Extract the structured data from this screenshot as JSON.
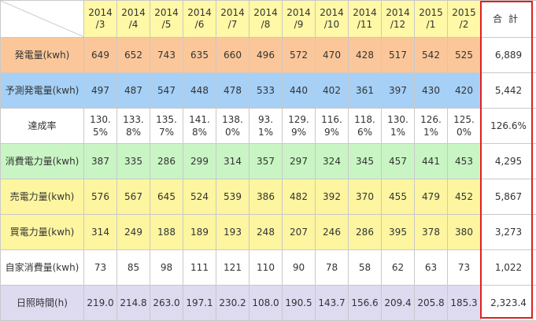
{
  "header": {
    "months": [
      "2014\n/3",
      "2014\n/4",
      "2014\n/5",
      "2014\n/6",
      "2014\n/7",
      "2014\n/8",
      "2014\n/9",
      "2014\n/10",
      "2014\n/11",
      "2014\n/12",
      "2015\n/1",
      "2015\n/2"
    ],
    "total_label": "合計"
  },
  "rows": [
    {
      "label": "発電量(kwh)",
      "color": "#fbc79a",
      "values": [
        "649",
        "652",
        "743",
        "635",
        "660",
        "496",
        "572",
        "470",
        "428",
        "517",
        "542",
        "525"
      ],
      "total": "6,889"
    },
    {
      "label": "予測発電量(kwh)",
      "color": "#a6d0f6",
      "values": [
        "497",
        "487",
        "547",
        "448",
        "478",
        "533",
        "440",
        "402",
        "361",
        "397",
        "430",
        "420"
      ],
      "total": "5,442"
    },
    {
      "label": "達成率",
      "color": "#ffffff",
      "values": [
        "130.\n5%",
        "133.\n8%",
        "135.\n7%",
        "141.\n8%",
        "138.\n0%",
        "93.\n1%",
        "129.\n9%",
        "116.\n9%",
        "118.\n6%",
        "130.\n1%",
        "126.\n1%",
        "125.\n0%"
      ],
      "total": "126.6%"
    },
    {
      "label": "消費電力量(kwh)",
      "color": "#c9f5c4",
      "values": [
        "387",
        "335",
        "286",
        "299",
        "314",
        "357",
        "297",
        "324",
        "345",
        "457",
        "441",
        "453"
      ],
      "total": "4,295"
    },
    {
      "label": "売電力量(kwh)",
      "color": "#fdf5a0",
      "values": [
        "576",
        "567",
        "645",
        "524",
        "539",
        "386",
        "482",
        "392",
        "370",
        "455",
        "479",
        "452"
      ],
      "total": "5,867"
    },
    {
      "label": "買電力量(kwh)",
      "color": "#fdf5a0",
      "values": [
        "314",
        "249",
        "188",
        "189",
        "193",
        "248",
        "207",
        "246",
        "286",
        "395",
        "378",
        "380"
      ],
      "total": "3,273"
    },
    {
      "label": "自家消費量(kwh)",
      "color": "#ffffff",
      "values": [
        "73",
        "85",
        "98",
        "111",
        "121",
        "110",
        "90",
        "78",
        "58",
        "62",
        "63",
        "73"
      ],
      "total": "1,022"
    },
    {
      "label": "日照時間(h)",
      "color": "#dedaf0",
      "values": [
        "219.0",
        "214.8",
        "263.0",
        "197.1",
        "230.2",
        "108.0",
        "190.5",
        "143.7",
        "156.6",
        "209.4",
        "205.8",
        "185.3"
      ],
      "total": "2,323.4"
    }
  ],
  "colors": {
    "highlight_frame": "#e02020",
    "header_bg": "#fff8a6"
  }
}
